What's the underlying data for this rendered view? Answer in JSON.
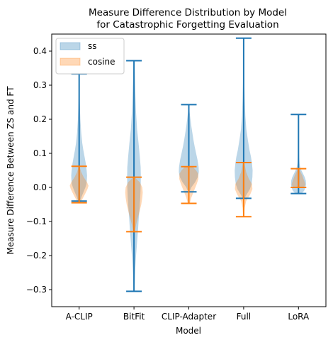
{
  "chart_data": {
    "type": "violin",
    "title_lines": [
      "Measure Difference Distribution by Model",
      "for Catastrophic Forgetting Evaluation"
    ],
    "xlabel": "Model",
    "ylabel": "Measure Difference Between ZS and FT",
    "categories": [
      "A-CLIP",
      "BitFit",
      "CLIP-Adapter",
      "Full",
      "LoRA"
    ],
    "ylim": [
      -0.35,
      0.45
    ],
    "yticks": [
      -0.3,
      -0.2,
      -0.1,
      0.0,
      0.1,
      0.2,
      0.3,
      0.4
    ],
    "ytick_labels": [
      "−0.3",
      "−0.2",
      "−0.1",
      "0.0",
      "0.1",
      "0.2",
      "0.3",
      "0.4"
    ],
    "grid": false,
    "legend_position": "top-left",
    "series": [
      {
        "name": "ss",
        "color": "#1f77b4",
        "violins": [
          {
            "min": -0.04,
            "max": 0.333,
            "profile": [
              [
                -0.04,
                0.05
              ],
              [
                -0.03,
                0.1
              ],
              [
                -0.015,
                0.2
              ],
              [
                0.0,
                0.3
              ],
              [
                0.01,
                0.35
              ],
              [
                0.02,
                0.37
              ],
              [
                0.035,
                0.38
              ],
              [
                0.05,
                0.36
              ],
              [
                0.07,
                0.32
              ],
              [
                0.09,
                0.26
              ],
              [
                0.11,
                0.2
              ],
              [
                0.13,
                0.15
              ],
              [
                0.16,
                0.1
              ],
              [
                0.2,
                0.06
              ],
              [
                0.25,
                0.03
              ],
              [
                0.3,
                0.015
              ],
              [
                0.333,
                0.005
              ]
            ]
          },
          {
            "min": -0.305,
            "max": 0.372,
            "profile": [
              [
                -0.305,
                0.02
              ],
              [
                -0.27,
                0.04
              ],
              [
                -0.24,
                0.06
              ],
              [
                -0.2,
                0.1
              ],
              [
                -0.16,
                0.15
              ],
              [
                -0.12,
                0.2
              ],
              [
                -0.09,
                0.23
              ],
              [
                -0.06,
                0.27
              ],
              [
                -0.03,
                0.3
              ],
              [
                0.0,
                0.32
              ],
              [
                0.03,
                0.33
              ],
              [
                0.06,
                0.32
              ],
              [
                0.09,
                0.28
              ],
              [
                0.13,
                0.22
              ],
              [
                0.17,
                0.15
              ],
              [
                0.22,
                0.1
              ],
              [
                0.27,
                0.07
              ],
              [
                0.32,
                0.045
              ],
              [
                0.35,
                0.03
              ],
              [
                0.372,
                0.01
              ]
            ]
          },
          {
            "min": -0.013,
            "max": 0.243,
            "profile": [
              [
                -0.013,
                0.03
              ],
              [
                0.0,
                0.12
              ],
              [
                0.015,
                0.3
              ],
              [
                0.03,
                0.43
              ],
              [
                0.045,
                0.48
              ],
              [
                0.06,
                0.47
              ],
              [
                0.08,
                0.42
              ],
              [
                0.1,
                0.35
              ],
              [
                0.12,
                0.28
              ],
              [
                0.14,
                0.22
              ],
              [
                0.16,
                0.17
              ],
              [
                0.18,
                0.12
              ],
              [
                0.2,
                0.08
              ],
              [
                0.22,
                0.04
              ],
              [
                0.243,
                0.01
              ]
            ]
          },
          {
            "min": -0.032,
            "max": 0.438,
            "profile": [
              [
                -0.032,
                0.04
              ],
              [
                -0.02,
                0.15
              ],
              [
                -0.005,
                0.3
              ],
              [
                0.01,
                0.38
              ],
              [
                0.03,
                0.42
              ],
              [
                0.05,
                0.43
              ],
              [
                0.07,
                0.4
              ],
              [
                0.09,
                0.35
              ],
              [
                0.11,
                0.28
              ],
              [
                0.14,
                0.2
              ],
              [
                0.17,
                0.13
              ],
              [
                0.21,
                0.08
              ],
              [
                0.26,
                0.05
              ],
              [
                0.31,
                0.03
              ],
              [
                0.36,
                0.02
              ],
              [
                0.4,
                0.012
              ],
              [
                0.438,
                0.005
              ]
            ]
          },
          {
            "min": -0.018,
            "max": 0.214,
            "profile": [
              [
                -0.018,
                0.15
              ],
              [
                -0.01,
                0.27
              ],
              [
                0.0,
                0.34
              ],
              [
                0.01,
                0.36
              ],
              [
                0.02,
                0.35
              ],
              [
                0.03,
                0.3
              ],
              [
                0.04,
                0.22
              ],
              [
                0.05,
                0.14
              ],
              [
                0.06,
                0.08
              ],
              [
                0.07,
                0.05
              ],
              [
                0.09,
                0.03
              ],
              [
                0.12,
                0.02
              ],
              [
                0.16,
                0.012
              ],
              [
                0.19,
                0.008
              ],
              [
                0.214,
                0.004
              ]
            ]
          }
        ]
      },
      {
        "name": "cosine",
        "color": "#ff7f0e",
        "violins": [
          {
            "min": -0.045,
            "max": 0.062,
            "profile": [
              [
                -0.045,
                0.05
              ],
              [
                -0.035,
                0.15
              ],
              [
                -0.02,
                0.28
              ],
              [
                -0.005,
                0.4
              ],
              [
                0.005,
                0.45
              ],
              [
                0.015,
                0.38
              ],
              [
                0.03,
                0.22
              ],
              [
                0.045,
                0.1
              ],
              [
                0.062,
                0.02
              ]
            ]
          },
          {
            "min": -0.13,
            "max": 0.03,
            "profile": [
              [
                -0.13,
                0.04
              ],
              [
                -0.11,
                0.1
              ],
              [
                -0.09,
                0.18
              ],
              [
                -0.07,
                0.27
              ],
              [
                -0.05,
                0.35
              ],
              [
                -0.03,
                0.4
              ],
              [
                -0.015,
                0.42
              ],
              [
                0.0,
                0.4
              ],
              [
                0.015,
                0.28
              ],
              [
                0.03,
                0.03
              ]
            ]
          },
          {
            "min": -0.047,
            "max": 0.061,
            "profile": [
              [
                -0.047,
                0.05
              ],
              [
                -0.03,
                0.12
              ],
              [
                -0.01,
                0.25
              ],
              [
                0.01,
                0.38
              ],
              [
                0.025,
                0.46
              ],
              [
                0.04,
                0.45
              ],
              [
                0.05,
                0.35
              ],
              [
                0.061,
                0.18
              ]
            ]
          },
          {
            "min": -0.086,
            "max": 0.073,
            "profile": [
              [
                -0.086,
                0.02
              ],
              [
                -0.06,
                0.05
              ],
              [
                -0.04,
                0.12
              ],
              [
                -0.02,
                0.32
              ],
              [
                -0.005,
                0.42
              ],
              [
                0.01,
                0.4
              ],
              [
                0.025,
                0.25
              ],
              [
                0.045,
                0.12
              ],
              [
                0.073,
                0.03
              ]
            ]
          },
          {
            "min": 0.0,
            "max": 0.055,
            "profile": [
              [
                0.0,
                0.25
              ],
              [
                0.008,
                0.33
              ],
              [
                0.015,
                0.3
              ],
              [
                0.025,
                0.24
              ],
              [
                0.035,
                0.18
              ],
              [
                0.045,
                0.1
              ],
              [
                0.055,
                0.03
              ]
            ]
          }
        ]
      }
    ]
  }
}
